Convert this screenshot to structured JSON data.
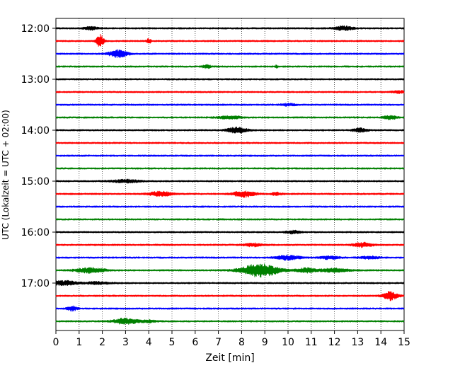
{
  "chart_data": {
    "type": "line",
    "title": "",
    "xlabel": "Zeit  [min]",
    "ylabel": "UTC (Lokalzeit = UTC + 02:00)",
    "xlim": [
      0,
      15
    ],
    "x_ticks": [
      "0",
      "1",
      "2",
      "3",
      "4",
      "5",
      "6",
      "7",
      "8",
      "9",
      "10",
      "11",
      "12",
      "13",
      "14",
      "15"
    ],
    "y_tick_labels": [
      "12:00",
      "13:00",
      "14:00",
      "15:00",
      "16:00",
      "17:00"
    ],
    "grid": "vertical dotted",
    "legend": "none",
    "trace_colors": [
      "#000000",
      "#ff0000",
      "#0000ff",
      "#008000"
    ],
    "series": [
      {
        "start": "12:00",
        "bursts": [
          [
            1.5,
            0.3,
            2
          ],
          [
            12.4,
            0.4,
            3
          ]
        ]
      },
      {
        "start": "12:15",
        "bursts": [
          [
            1.9,
            0.15,
            9
          ],
          [
            4.0,
            0.1,
            3
          ]
        ]
      },
      {
        "start": "12:30",
        "bursts": [
          [
            2.7,
            0.4,
            5
          ]
        ]
      },
      {
        "start": "12:45",
        "bursts": [
          [
            6.5,
            0.2,
            2
          ],
          [
            9.5,
            0.05,
            2
          ]
        ]
      },
      {
        "start": "13:00",
        "bursts": []
      },
      {
        "start": "13:15",
        "bursts": [
          [
            14.8,
            0.3,
            1.5
          ]
        ]
      },
      {
        "start": "13:30",
        "bursts": [
          [
            10.0,
            0.3,
            1.5
          ]
        ]
      },
      {
        "start": "13:45",
        "bursts": [
          [
            7.5,
            0.5,
            2
          ],
          [
            14.4,
            0.3,
            2.5
          ]
        ]
      },
      {
        "start": "14:00",
        "bursts": [
          [
            7.8,
            0.4,
            4
          ],
          [
            13.1,
            0.3,
            2.5
          ]
        ]
      },
      {
        "start": "14:15",
        "bursts": []
      },
      {
        "start": "14:30",
        "bursts": []
      },
      {
        "start": "14:45",
        "bursts": []
      },
      {
        "start": "15:00",
        "bursts": [
          [
            3.0,
            0.6,
            2
          ]
        ]
      },
      {
        "start": "15:15",
        "bursts": [
          [
            4.5,
            0.5,
            3
          ],
          [
            8.1,
            0.45,
            4
          ],
          [
            9.5,
            0.2,
            2
          ]
        ]
      },
      {
        "start": "15:30",
        "bursts": []
      },
      {
        "start": "15:45",
        "bursts": []
      },
      {
        "start": "16:00",
        "bursts": [
          [
            10.2,
            0.3,
            2
          ]
        ]
      },
      {
        "start": "16:15",
        "bursts": [
          [
            8.5,
            0.4,
            2
          ],
          [
            13.2,
            0.4,
            3
          ]
        ]
      },
      {
        "start": "16:30",
        "bursts": [
          [
            10.0,
            0.5,
            3
          ],
          [
            11.8,
            0.4,
            2
          ],
          [
            13.5,
            0.4,
            2
          ]
        ]
      },
      {
        "start": "16:45",
        "bursts": [
          [
            1.5,
            0.6,
            3.5
          ],
          [
            8.8,
            0.8,
            9
          ],
          [
            10.8,
            0.4,
            3
          ],
          [
            12.0,
            0.6,
            2.5
          ]
        ]
      },
      {
        "start": "17:00",
        "bursts": [
          [
            0.3,
            0.6,
            3
          ],
          [
            1.8,
            0.5,
            1.5
          ]
        ]
      },
      {
        "start": "17:15",
        "bursts": [
          [
            14.4,
            0.3,
            6
          ]
        ]
      },
      {
        "start": "17:30",
        "bursts": [
          [
            0.7,
            0.2,
            3
          ]
        ]
      },
      {
        "start": "17:45",
        "bursts": [
          [
            3.0,
            0.5,
            4
          ],
          [
            4.0,
            0.3,
            1.5
          ]
        ]
      }
    ]
  }
}
